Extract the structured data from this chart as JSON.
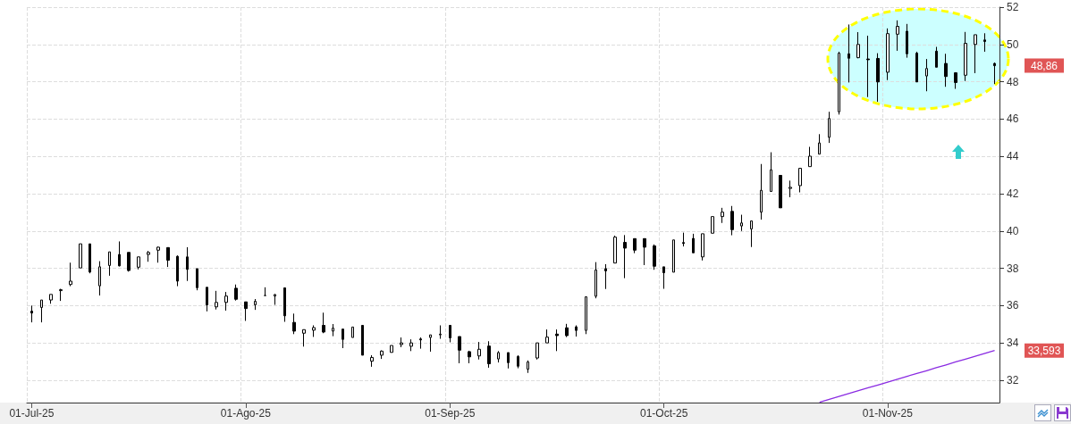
{
  "chart_data": {
    "type": "candlestick",
    "categories": [
      "01-Jul-25",
      null,
      null,
      null,
      null,
      null,
      null,
      null,
      null,
      null,
      null,
      null,
      null,
      null,
      null,
      null,
      null,
      null,
      null,
      null,
      null,
      null,
      "01-Ago-25",
      null,
      null,
      null,
      null,
      null,
      null,
      null,
      null,
      null,
      null,
      null,
      null,
      null,
      null,
      null,
      null,
      null,
      null,
      null,
      null,
      "01-Sep-25",
      null,
      null,
      null,
      null,
      null,
      null,
      null,
      null,
      null,
      null,
      null,
      null,
      null,
      null,
      null,
      null,
      null,
      null,
      null,
      null,
      null,
      "01-Oct-25",
      null,
      null,
      null,
      null,
      null,
      null,
      null,
      null,
      null,
      null,
      null,
      null,
      null,
      null,
      null,
      null,
      null,
      null,
      null,
      null,
      null,
      null,
      "01-Nov-25",
      null,
      null,
      null,
      null,
      null,
      null,
      null,
      null,
      null,
      null,
      null
    ],
    "series": [
      {
        "color": "#000000",
        "ohlc": [
          [
            35.7,
            36.0,
            35.1,
            35.6
          ],
          [
            35.9,
            36.3,
            35.1,
            36.3
          ],
          [
            36.3,
            36.6,
            36.1,
            36.6
          ],
          [
            36.8,
            36.9,
            36.25,
            36.85
          ],
          [
            37.13,
            38.3,
            37.04,
            37.31
          ],
          [
            38.02,
            39.31,
            38.02,
            39.31
          ],
          [
            39.31,
            39.31,
            37.73,
            37.8
          ],
          [
            37.06,
            38.38,
            36.54,
            38.08
          ],
          [
            38.15,
            38.88,
            37.6,
            38.88
          ],
          [
            38.74,
            39.44,
            38.1,
            38.13
          ],
          [
            38.85,
            38.85,
            37.82,
            37.88
          ],
          [
            38.06,
            38.61,
            37.94,
            38.61
          ],
          [
            38.74,
            38.93,
            38.35,
            38.85
          ],
          [
            38.97,
            39.16,
            38.3,
            39.13
          ],
          [
            39.11,
            39.11,
            38.07,
            38.43
          ],
          [
            38.64,
            38.69,
            37.04,
            37.31
          ],
          [
            38.61,
            39.13,
            37.32,
            37.94
          ],
          [
            37.98,
            37.98,
            36.82,
            36.96
          ],
          [
            36.98,
            36.98,
            35.69,
            36.04
          ],
          [
            35.93,
            36.79,
            35.79,
            36.17
          ],
          [
            36.17,
            36.73,
            35.73,
            36.51
          ],
          [
            36.93,
            37.13,
            36.27,
            36.34
          ],
          [
            36.2,
            36.2,
            35.18,
            35.84
          ],
          [
            36.04,
            36.35,
            35.77,
            36.23
          ],
          [
            36.54,
            36.98,
            36.54,
            36.54
          ],
          [
            36.51,
            36.62,
            36.04,
            36.59
          ],
          [
            36.95,
            36.95,
            35.13,
            35.45
          ],
          [
            35.1,
            35.57,
            34.47,
            34.63
          ],
          [
            34.52,
            34.71,
            33.8,
            34.71
          ],
          [
            34.68,
            34.94,
            34.32,
            34.82
          ],
          [
            34.94,
            35.62,
            34.52,
            34.58
          ],
          [
            34.63,
            35.01,
            34.36,
            34.79
          ],
          [
            34.74,
            34.74,
            33.72,
            34.19
          ],
          [
            34.29,
            34.85,
            34.29,
            34.85
          ],
          [
            34.94,
            34.94,
            33.34,
            33.34
          ],
          [
            33.02,
            33.34,
            32.72,
            33.22
          ],
          [
            33.34,
            33.6,
            33.14,
            33.56
          ],
          [
            33.49,
            33.86,
            33.49,
            33.86
          ],
          [
            33.91,
            34.29,
            33.77,
            34.0
          ],
          [
            33.82,
            34.19,
            33.56,
            34.0
          ],
          [
            34.21,
            34.29,
            33.69,
            34.16
          ],
          [
            34.29,
            34.43,
            33.53,
            34.43
          ],
          [
            34.43,
            34.94,
            34.22,
            34.47
          ],
          [
            34.94,
            34.94,
            34.03,
            34.27
          ],
          [
            34.34,
            34.34,
            32.91,
            33.61
          ],
          [
            33.53,
            33.58,
            32.91,
            33.25
          ],
          [
            33.3,
            34.05,
            33.11,
            33.66
          ],
          [
            33.83,
            34.09,
            32.67,
            32.88
          ],
          [
            33.14,
            33.56,
            32.95,
            33.48
          ],
          [
            33.48,
            33.48,
            32.63,
            32.94
          ],
          [
            33.27,
            33.34,
            32.64,
            32.75
          ],
          [
            32.59,
            33.06,
            32.39,
            32.98
          ],
          [
            33.19,
            34.0,
            33.11,
            34.0
          ],
          [
            34.0,
            34.72,
            34.0,
            34.31
          ],
          [
            34.47,
            34.72,
            33.56,
            34.39
          ],
          [
            34.81,
            35.02,
            34.31,
            34.39
          ],
          [
            34.86,
            34.94,
            34.34,
            34.67
          ],
          [
            34.67,
            36.47,
            34.47,
            36.47
          ],
          [
            36.5,
            38.33,
            36.39,
            37.91
          ],
          [
            37.98,
            38.22,
            36.89,
            37.86
          ],
          [
            38.28,
            39.75,
            38.28,
            39.67
          ],
          [
            39.39,
            39.78,
            37.47,
            39.08
          ],
          [
            39.59,
            39.59,
            38.81,
            38.97
          ],
          [
            39.59,
            39.59,
            38.17,
            39.13
          ],
          [
            39.2,
            39.28,
            37.92,
            38.11
          ],
          [
            38.08,
            38.08,
            36.9,
            37.76
          ],
          [
            37.79,
            39.52,
            37.79,
            39.52
          ],
          [
            39.38,
            39.91,
            39.17,
            39.33
          ],
          [
            39.6,
            39.85,
            38.83,
            38.83
          ],
          [
            38.61,
            39.85,
            38.42,
            39.85
          ],
          [
            39.88,
            40.77,
            39.88,
            40.77
          ],
          [
            40.77,
            41.24,
            40.43,
            41.01
          ],
          [
            41.05,
            41.34,
            39.77,
            40.07
          ],
          [
            40.27,
            40.87,
            40.0,
            40.43
          ],
          [
            40.11,
            40.54,
            39.14,
            40.54
          ],
          [
            41.01,
            43.59,
            40.61,
            42.18
          ],
          [
            42.12,
            44.22,
            42.12,
            43.28
          ],
          [
            42.98,
            42.98,
            41.24,
            41.24
          ],
          [
            42.28,
            42.7,
            41.81,
            42.34
          ],
          [
            42.43,
            43.36,
            42.07,
            43.36
          ],
          [
            43.45,
            44.51,
            43.45,
            44.01
          ],
          [
            44.12,
            45.19,
            44.12,
            44.72
          ],
          [
            45.02,
            46.39,
            44.72,
            46.03
          ],
          [
            46.39,
            49.61,
            46.24,
            49.53
          ],
          [
            49.5,
            51.07,
            47.96,
            49.26
          ],
          [
            49.29,
            50.66,
            49.26,
            50.0
          ],
          [
            49.22,
            50.47,
            47.18,
            49.18
          ],
          [
            49.25,
            49.53,
            46.93,
            47.99
          ],
          [
            48.51,
            50.86,
            48.09,
            50.58
          ],
          [
            50.55,
            51.29,
            49.66,
            50.97
          ],
          [
            50.71,
            51.1,
            49.29,
            49.5
          ],
          [
            49.53,
            49.61,
            47.99,
            47.99
          ],
          [
            48.31,
            49.22,
            47.49,
            48.71
          ],
          [
            49.64,
            49.87,
            48.78,
            48.78
          ],
          [
            48.98,
            49.5,
            47.73,
            48.28
          ],
          [
            48.48,
            48.51,
            47.62,
            47.96
          ],
          [
            48.35,
            50.67,
            48.04,
            50.06
          ],
          [
            50.0,
            50.52,
            48.46,
            50.52
          ],
          [
            50.24,
            50.6,
            49.61,
            50.16
          ],
          [
            48.98,
            49.03,
            47.88,
            48.86
          ]
        ]
      },
      {
        "type": "line",
        "color": "#8a2be2",
        "values": [
          null,
          null,
          null,
          null,
          null,
          null,
          null,
          null,
          null,
          null,
          null,
          null,
          null,
          null,
          null,
          null,
          null,
          null,
          null,
          null,
          null,
          null,
          null,
          null,
          null,
          null,
          null,
          null,
          null,
          null,
          null,
          null,
          null,
          null,
          null,
          null,
          null,
          null,
          null,
          null,
          null,
          null,
          null,
          null,
          null,
          null,
          null,
          null,
          null,
          null,
          null,
          null,
          null,
          null,
          null,
          null,
          null,
          null,
          null,
          null,
          null,
          null,
          null,
          null,
          null,
          null,
          null,
          null,
          null,
          null,
          null,
          null,
          null,
          null,
          null,
          null,
          null,
          null,
          null,
          null,
          null,
          30.82,
          30.97,
          31.13,
          31.28,
          31.44,
          31.59,
          31.74,
          31.9,
          32.05,
          32.21,
          32.36,
          32.51,
          32.67,
          32.82,
          32.98,
          33.13,
          33.28,
          33.44,
          33.59
        ]
      }
    ],
    "ylim": [
      30.8,
      52
    ],
    "yticks": [
      32,
      34,
      36,
      38,
      40,
      42,
      44,
      46,
      48,
      50,
      52
    ],
    "grid": true,
    "marker": "none",
    "line_style": "solid",
    "annotations": [
      "48,86",
      "33,593"
    ]
  }
}
